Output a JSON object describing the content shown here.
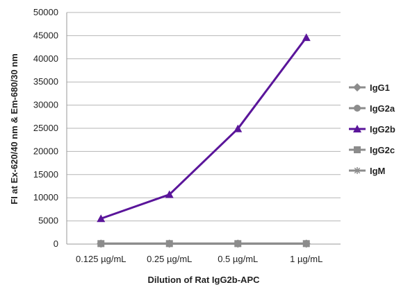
{
  "chart_data": {
    "type": "line",
    "categories": [
      "0.125 µg/mL",
      "0.25 µg/mL",
      "0.5 µg/mL",
      "1 µg/mL"
    ],
    "xlabel": "Dilution of Rat IgG2b-APC",
    "ylabel": "FI at Ex-620/40 nm & Em-680/30 nm",
    "ylim": [
      0,
      50000
    ],
    "yticks": [
      0,
      5000,
      10000,
      15000,
      20000,
      25000,
      30000,
      35000,
      40000,
      45000,
      50000
    ],
    "grid": true,
    "legend_position": "right",
    "series": [
      {
        "name": "IgG1",
        "values": [
          100,
          100,
          100,
          100
        ],
        "color": "#8c8c8c",
        "marker": "diamond"
      },
      {
        "name": "IgG2a",
        "values": [
          100,
          100,
          100,
          100
        ],
        "color": "#8c8c8c",
        "marker": "circle"
      },
      {
        "name": "IgG2b",
        "values": [
          5500,
          10700,
          24900,
          44600
        ],
        "color": "#5a159a",
        "marker": "triangle"
      },
      {
        "name": "IgG2c",
        "values": [
          100,
          100,
          100,
          100
        ],
        "color": "#8c8c8c",
        "marker": "square"
      },
      {
        "name": "IgM",
        "values": [
          100,
          100,
          100,
          100
        ],
        "color": "#8c8c8c",
        "marker": "star"
      }
    ]
  }
}
